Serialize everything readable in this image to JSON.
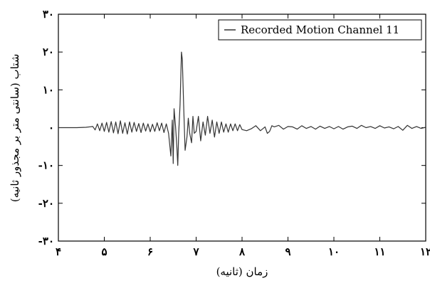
{
  "chart_data": {
    "type": "line",
    "xlabel": "زمان (ثانیه)",
    "ylabel": "شتاب (سانتی متر بر مجذور ثانیه)",
    "xlim": [
      4,
      12
    ],
    "ylim": [
      -30,
      30
    ],
    "grid": false,
    "legend_position": "top-right",
    "x_ticks": [
      {
        "value": 4,
        "label": "۴"
      },
      {
        "value": 5,
        "label": "۵"
      },
      {
        "value": 6,
        "label": "۶"
      },
      {
        "value": 7,
        "label": "۷"
      },
      {
        "value": 8,
        "label": "۸"
      },
      {
        "value": 9,
        "label": "۹"
      },
      {
        "value": 10,
        "label": "۱۰"
      },
      {
        "value": 11,
        "label": "۱۱"
      },
      {
        "value": 12,
        "label": "۱۲"
      }
    ],
    "y_ticks": [
      {
        "value": 30,
        "label": "۳۰"
      },
      {
        "value": 20,
        "label": "۲۰"
      },
      {
        "value": 10,
        "label": "۱۰"
      },
      {
        "value": 0,
        "label": "۰"
      },
      {
        "value": -10,
        "label": "-۱۰"
      },
      {
        "value": -20,
        "label": "-۲۰"
      },
      {
        "value": -30,
        "label": "-۳۰"
      }
    ],
    "series": [
      {
        "name": "Recorded Motion Channel 11",
        "color": "#333333",
        "x": [
          4.0,
          4.4,
          4.6,
          4.75,
          4.8,
          4.85,
          4.9,
          4.95,
          5.0,
          5.05,
          5.1,
          5.15,
          5.2,
          5.25,
          5.3,
          5.35,
          5.4,
          5.45,
          5.5,
          5.55,
          5.6,
          5.65,
          5.7,
          5.75,
          5.8,
          5.85,
          5.9,
          5.95,
          6.0,
          6.05,
          6.1,
          6.15,
          6.2,
          6.25,
          6.3,
          6.35,
          6.4,
          6.45,
          6.48,
          6.5,
          6.52,
          6.55,
          6.58,
          6.6,
          6.62,
          6.65,
          6.68,
          6.7,
          6.73,
          6.76,
          6.8,
          6.83,
          6.86,
          6.9,
          6.93,
          6.96,
          7.0,
          7.05,
          7.1,
          7.15,
          7.2,
          7.25,
          7.3,
          7.35,
          7.4,
          7.45,
          7.5,
          7.55,
          7.6,
          7.65,
          7.7,
          7.75,
          7.8,
          7.85,
          7.9,
          7.95,
          8.0,
          8.1,
          8.2,
          8.3,
          8.4,
          8.5,
          8.55,
          8.6,
          8.65,
          8.7,
          8.8,
          8.9,
          9.0,
          9.1,
          9.2,
          9.3,
          9.4,
          9.5,
          9.6,
          9.7,
          9.8,
          9.9,
          10.0,
          10.1,
          10.2,
          10.3,
          10.4,
          10.5,
          10.6,
          10.7,
          10.8,
          10.9,
          11.0,
          11.1,
          11.2,
          11.3,
          11.4,
          11.5,
          11.6,
          11.7,
          11.8,
          11.9,
          12.0
        ],
        "y": [
          0.0,
          0.0,
          0.1,
          0.3,
          -0.6,
          1.0,
          -0.8,
          1.2,
          -1.0,
          1.4,
          -1.2,
          1.6,
          -1.4,
          1.5,
          -1.6,
          1.8,
          -1.5,
          1.3,
          -1.7,
          1.5,
          -1.2,
          1.4,
          -1.0,
          1.1,
          -1.3,
          1.2,
          -0.9,
          1.0,
          -1.1,
          0.9,
          -1.0,
          1.3,
          -0.8,
          1.2,
          -1.3,
          1.0,
          -1.5,
          -7.5,
          2.0,
          -9.5,
          5.0,
          0.5,
          -5.0,
          -10.0,
          -1.5,
          6.0,
          20.0,
          18.0,
          5.0,
          -6.0,
          -2.5,
          2.5,
          -1.5,
          -4.0,
          3.0,
          -1.5,
          -1.0,
          3.0,
          -3.5,
          1.5,
          -2.0,
          3.0,
          -1.5,
          2.0,
          -2.5,
          1.5,
          -1.5,
          1.5,
          -1.2,
          1.0,
          -1.2,
          1.0,
          -0.8,
          1.0,
          -0.8,
          0.8,
          -0.5,
          -0.8,
          -0.3,
          0.5,
          -0.8,
          0.2,
          -1.5,
          -1.0,
          0.5,
          0.2,
          0.6,
          -0.4,
          0.3,
          0.2,
          -0.4,
          0.5,
          -0.2,
          0.3,
          -0.4,
          0.4,
          -0.2,
          0.3,
          -0.3,
          0.3,
          -0.4,
          0.2,
          0.4,
          -0.2,
          0.6,
          0.0,
          0.3,
          -0.2,
          0.5,
          -0.1,
          0.2,
          -0.3,
          0.3,
          -0.7,
          0.6,
          -0.2,
          0.3,
          -0.2,
          0.1
        ]
      }
    ]
  }
}
